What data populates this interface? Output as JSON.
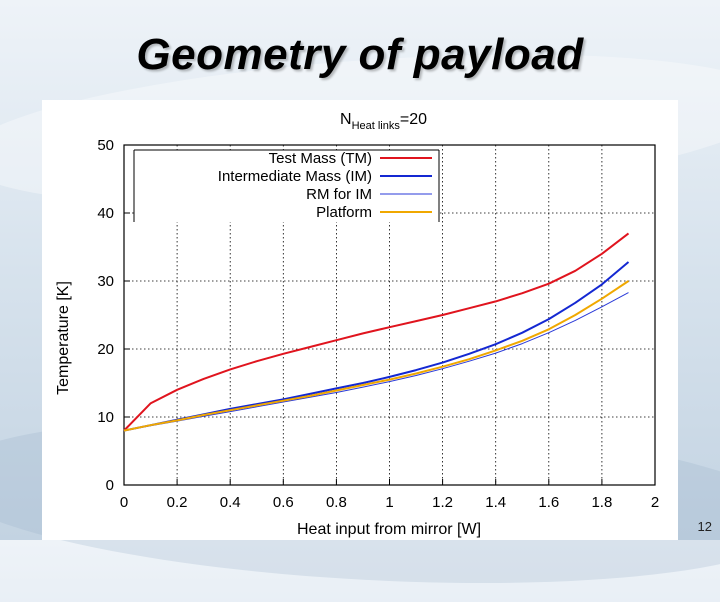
{
  "slide": {
    "title": "Geometry of payload",
    "page_number": "12"
  },
  "chart_data": {
    "type": "line",
    "title_main": "N",
    "title_sub": "Heat links",
    "title_rest": "=20",
    "xlabel": "Heat input from mirror [W]",
    "ylabel": "Temperature [K]",
    "xlim": [
      0,
      2
    ],
    "ylim": [
      0,
      50
    ],
    "xticks": [
      "0",
      "0.2",
      "0.4",
      "0.6",
      "0.8",
      "1",
      "1.2",
      "1.4",
      "1.6",
      "1.8",
      "2"
    ],
    "yticks": [
      "0",
      "10",
      "20",
      "30",
      "40",
      "50"
    ],
    "grid": true,
    "legend_position": "top-left",
    "series": [
      {
        "name": "Test Mass (TM)",
        "color": "#e0141e",
        "style": "solid",
        "x": [
          0,
          0.1,
          0.2,
          0.3,
          0.4,
          0.5,
          0.6,
          0.7,
          0.8,
          0.9,
          1.0,
          1.1,
          1.2,
          1.3,
          1.4,
          1.5,
          1.6,
          1.7,
          1.8,
          1.9
        ],
        "values": [
          8.0,
          12.0,
          14.0,
          15.6,
          17.0,
          18.2,
          19.3,
          20.3,
          21.3,
          22.3,
          23.2,
          24.1,
          25.0,
          26.0,
          27.0,
          28.2,
          29.6,
          31.5,
          34.0,
          37.0
        ]
      },
      {
        "name": "Intermediate Mass (IM)",
        "color": "#1428d2",
        "style": "solid",
        "x": [
          0,
          0.1,
          0.2,
          0.3,
          0.4,
          0.5,
          0.6,
          0.7,
          0.8,
          0.9,
          1.0,
          1.1,
          1.2,
          1.3,
          1.4,
          1.5,
          1.6,
          1.7,
          1.8,
          1.9
        ],
        "values": [
          8.0,
          8.8,
          9.6,
          10.4,
          11.2,
          11.9,
          12.6,
          13.4,
          14.2,
          15.0,
          15.9,
          16.9,
          18.0,
          19.3,
          20.7,
          22.4,
          24.4,
          26.8,
          29.5,
          32.8
        ]
      },
      {
        "name": "RM for IM",
        "color": "#2a3ad8",
        "style": "thin",
        "x": [
          0,
          0.1,
          0.2,
          0.3,
          0.4,
          0.5,
          0.6,
          0.7,
          0.8,
          0.9,
          1.0,
          1.1,
          1.2,
          1.3,
          1.4,
          1.5,
          1.6,
          1.7,
          1.8,
          1.9
        ],
        "values": [
          8.0,
          8.7,
          9.4,
          10.1,
          10.8,
          11.5,
          12.2,
          12.9,
          13.6,
          14.4,
          15.2,
          16.1,
          17.1,
          18.2,
          19.4,
          20.8,
          22.4,
          24.2,
          26.2,
          28.3
        ]
      },
      {
        "name": "Platform",
        "color": "#f0a800",
        "style": "solid",
        "x": [
          0,
          0.1,
          0.2,
          0.3,
          0.4,
          0.5,
          0.6,
          0.7,
          0.8,
          0.9,
          1.0,
          1.1,
          1.2,
          1.3,
          1.4,
          1.5,
          1.6,
          1.7,
          1.8,
          1.9
        ],
        "values": [
          8.0,
          8.8,
          9.5,
          10.3,
          11.0,
          11.7,
          12.4,
          13.1,
          13.9,
          14.7,
          15.5,
          16.4,
          17.4,
          18.5,
          19.8,
          21.2,
          22.9,
          25.0,
          27.4,
          30.0
        ]
      }
    ]
  }
}
